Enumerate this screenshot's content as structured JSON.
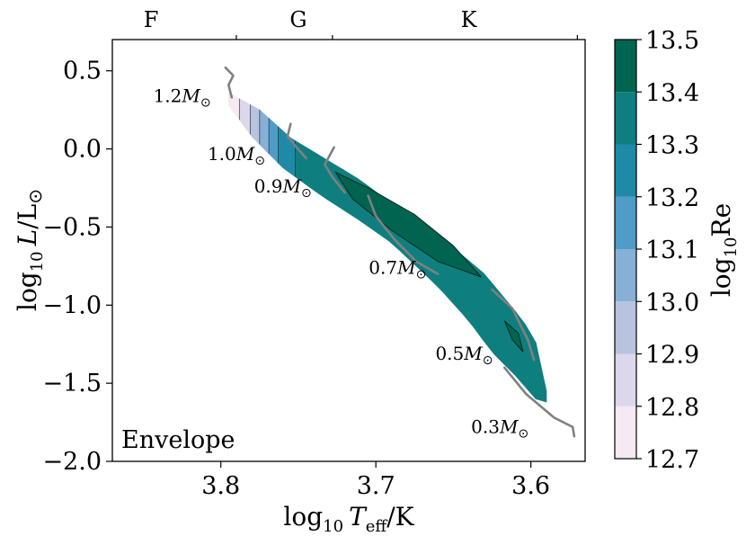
{
  "chart_data": {
    "type": "contour-hr-diagram",
    "panel_label": "Envelope",
    "xlabel": {
      "prefix": "log",
      "sub": "10",
      "var": "T",
      "var_sub": "eff",
      "suffix": "/K"
    },
    "ylabel": {
      "prefix": "log",
      "sub": "10",
      "var": "L",
      "suffix": "/L",
      "sun": "⊙"
    },
    "xlim": [
      3.87,
      3.565
    ],
    "ylim": [
      -2.0,
      0.7
    ],
    "x_ticks": [
      3.8,
      3.7,
      3.6
    ],
    "x_tick_labels": [
      "3.8",
      "3.7",
      "3.6"
    ],
    "y_ticks": [
      0.5,
      0.0,
      -0.5,
      -1.0,
      -1.5,
      -2.0
    ],
    "y_tick_labels": [
      "0.5",
      "0.0",
      "−0.5",
      "−1.0",
      "−1.5",
      "−2.0"
    ],
    "spectral_classes": [
      {
        "label": "F",
        "teff_log": 3.845
      },
      {
        "label": "G",
        "teff_log": 3.75
      },
      {
        "label": "K",
        "teff_log": 3.64
      }
    ],
    "spectral_boundaries": [
      3.79,
      3.728,
      3.57
    ],
    "colorbar": {
      "label": {
        "prefix": "log",
        "sub": "10",
        "name": "Re"
      },
      "min": 12.7,
      "max": 13.5,
      "levels": [
        12.7,
        12.8,
        12.9,
        13.0,
        13.1,
        13.2,
        13.3,
        13.4,
        13.5
      ],
      "tick_labels": [
        "12.7",
        "12.8",
        "12.9",
        "13.0",
        "13.1",
        "13.2",
        "13.3",
        "13.4",
        "13.5"
      ],
      "colors": [
        "#f5e9f2",
        "#dcd7ea",
        "#b8c3e0",
        "#86b0d6",
        "#4e9cc7",
        "#1f8aa7",
        "#0e7f7e",
        "#016450"
      ]
    },
    "band_edges": {
      "upper": [
        [
          3.795,
          0.36
        ],
        [
          3.775,
          0.25
        ],
        [
          3.755,
          0.07
        ],
        [
          3.73,
          -0.08
        ],
        [
          3.71,
          -0.2
        ],
        [
          3.69,
          -0.35
        ],
        [
          3.66,
          -0.55
        ],
        [
          3.63,
          -0.8
        ],
        [
          3.605,
          -1.1
        ],
        [
          3.595,
          -1.27
        ],
        [
          3.59,
          -1.55
        ]
      ],
      "lower": [
        [
          3.795,
          0.28
        ],
        [
          3.78,
          0.08
        ],
        [
          3.76,
          -0.12
        ],
        [
          3.735,
          -0.3
        ],
        [
          3.71,
          -0.46
        ],
        [
          3.69,
          -0.6
        ],
        [
          3.66,
          -0.88
        ],
        [
          3.64,
          -1.1
        ],
        [
          3.625,
          -1.3
        ],
        [
          3.61,
          -1.45
        ],
        [
          3.595,
          -1.62
        ]
      ]
    },
    "color_regions": [
      {
        "level": 12.7,
        "x_from": 3.795,
        "x_to": 3.788
      },
      {
        "level": 12.8,
        "x_from": 3.788,
        "x_to": 3.781
      },
      {
        "level": 12.9,
        "x_from": 3.781,
        "x_to": 3.775
      },
      {
        "level": 13.0,
        "x_from": 3.775,
        "x_to": 3.769
      },
      {
        "level": 13.1,
        "x_from": 3.769,
        "x_to": 3.763
      },
      {
        "level": 13.2,
        "x_from": 3.763,
        "x_to": 3.752
      },
      {
        "level": 13.3,
        "x_from": 3.752,
        "x_to": 3.59
      }
    ],
    "dark_patches": [
      [
        [
          3.726,
          -0.15
        ],
        [
          3.705,
          -0.25
        ],
        [
          3.675,
          -0.42
        ],
        [
          3.65,
          -0.62
        ],
        [
          3.632,
          -0.82
        ],
        [
          3.66,
          -0.72
        ],
        [
          3.69,
          -0.52
        ],
        [
          3.715,
          -0.32
        ]
      ],
      [
        [
          3.617,
          -1.1
        ],
        [
          3.608,
          -1.18
        ],
        [
          3.605,
          -1.3
        ],
        [
          3.612,
          -1.22
        ]
      ]
    ],
    "tracks": [
      {
        "mass": "1.2",
        "points": [
          [
            3.797,
            0.52
          ],
          [
            3.792,
            0.47
          ],
          [
            3.795,
            0.41
          ],
          [
            3.793,
            0.33
          ]
        ],
        "label_at": [
          3.825,
          0.3
        ]
      },
      {
        "mass": "1.0",
        "points": [
          [
            3.755,
            0.16
          ],
          [
            3.757,
            0.08
          ],
          [
            3.752,
            0.02
          ],
          [
            3.745,
            -0.06
          ]
        ],
        "label_at": [
          3.79,
          -0.07
        ]
      },
      {
        "mass": "0.9",
        "points": [
          [
            3.727,
            0.01
          ],
          [
            3.733,
            -0.1
          ],
          [
            3.728,
            -0.18
          ],
          [
            3.72,
            -0.28
          ]
        ],
        "label_at": [
          3.76,
          -0.28
        ]
      },
      {
        "mass": "0.7",
        "points": [
          [
            3.705,
            -0.3
          ],
          [
            3.7,
            -0.43
          ],
          [
            3.688,
            -0.58
          ],
          [
            3.674,
            -0.72
          ],
          [
            3.66,
            -0.8
          ]
        ],
        "label_at": [
          3.686,
          -0.8
        ]
      },
      {
        "mass": "0.5",
        "points": [
          [
            3.625,
            -0.9
          ],
          [
            3.612,
            -1.02
          ],
          [
            3.602,
            -1.22
          ],
          [
            3.598,
            -1.35
          ]
        ],
        "label_at": [
          3.643,
          -1.35
        ]
      },
      {
        "mass": "0.3",
        "points": [
          [
            3.617,
            -1.4
          ],
          [
            3.603,
            -1.57
          ],
          [
            3.585,
            -1.72
          ],
          [
            3.573,
            -1.78
          ],
          [
            3.572,
            -1.84
          ]
        ],
        "label_at": [
          3.62,
          -1.82
        ]
      }
    ],
    "mass_unit": "M",
    "mass_sun": "⊙"
  }
}
